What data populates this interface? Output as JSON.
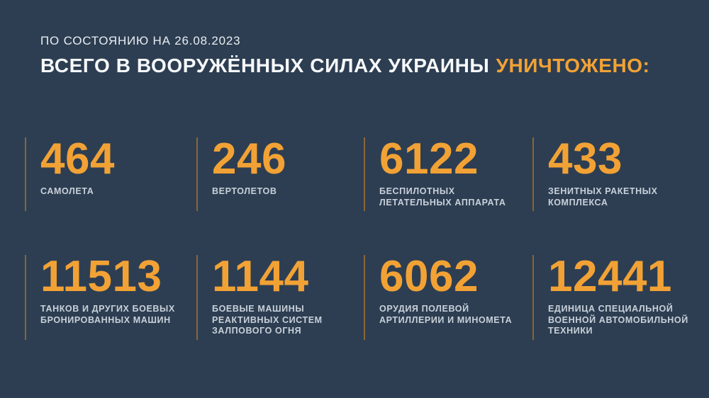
{
  "colors": {
    "background": "#2d3e52",
    "accent_orange": "#f2a235",
    "divider_line": "#8a6538",
    "title_white": "#f7f9fb",
    "label_gray": "#c9d1da"
  },
  "header": {
    "date_line": "ПО СОСТОЯНИЮ НА 26.08.2023",
    "title_white": "ВСЕГО В ВООРУЖЁННЫХ СИЛАХ УКРАИНЫ",
    "title_accent": "УНИЧТОЖЕНО:"
  },
  "stats": [
    {
      "value": "464",
      "label": "САМОЛЕТА"
    },
    {
      "value": "246",
      "label": "ВЕРТОЛЕТОВ"
    },
    {
      "value": "6122",
      "label": "БЕСПИЛОТНЫХ\nЛЕТАТЕЛЬНЫХ АППАРАТА"
    },
    {
      "value": "433",
      "label": "ЗЕНИТНЫХ РАКЕТНЫХ\nКОМПЛЕКСА"
    },
    {
      "value": "11513",
      "label": "ТАНКОВ И ДРУГИХ БОЕВЫХ\nБРОНИРОВАННЫХ МАШИН"
    },
    {
      "value": "1144",
      "label": "БОЕВЫЕ МАШИНЫ\nРЕАКТИВНЫХ СИСТЕМ\nЗАЛПОВОГО ОГНЯ"
    },
    {
      "value": "6062",
      "label": "ОРУДИЯ ПОЛЕВОЙ\nАРТИЛЛЕРИИ И МИНОМЕТА"
    },
    {
      "value": "12441",
      "label": "ЕДИНИЦА СПЕЦИАЛЬНОЙ\nВОЕННОЙ АВТОМОБИЛЬНОЙ\nТЕХНИКИ"
    }
  ],
  "chart_data": {
    "type": "table",
    "title": "ВСЕГО В ВООРУЖЁННЫХ СИЛАХ УКРАИНЫ УНИЧТОЖЕНО:",
    "subtitle": "ПО СОСТОЯНИЮ НА 26.08.2023",
    "categories": [
      "САМОЛЕТА",
      "ВЕРТОЛЕТОВ",
      "БЕСПИЛОТНЫХ ЛЕТАТЕЛЬНЫХ АППАРАТА",
      "ЗЕНИТНЫХ РАКЕТНЫХ КОМПЛЕКСА",
      "ТАНКОВ И ДРУГИХ БОЕВЫХ БРОНИРОВАННЫХ МАШИН",
      "БОЕВЫЕ МАШИНЫ РЕАКТИВНЫХ СИСТЕМ ЗАЛПОВОГО ОГНЯ",
      "ОРУДИЯ ПОЛЕВОЙ АРТИЛЛЕРИИ И МИНОМЕТА",
      "ЕДИНИЦА СПЕЦИАЛЬНОЙ ВОЕННОЙ АВТОМОБИЛЬНОЙ ТЕХНИКИ"
    ],
    "values": [
      464,
      246,
      6122,
      433,
      11513,
      1144,
      6062,
      12441
    ],
    "layout": "2 rows x 4 columns grid of stat counters, vertical divider line left of each counter"
  }
}
